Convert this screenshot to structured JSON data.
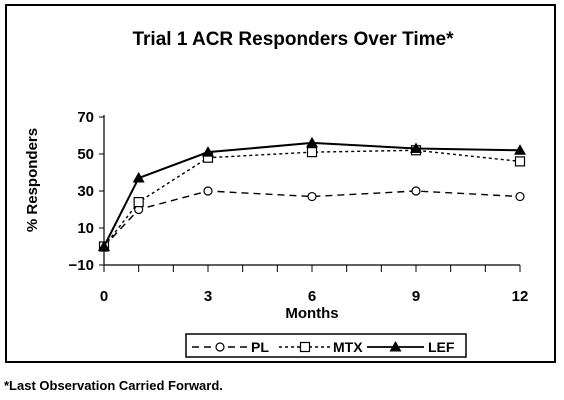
{
  "chart_data": {
    "type": "line",
    "title": "Trial 1 ACR Responders Over Time*",
    "xlabel": "Months",
    "ylabel": "% Responders",
    "xlim": [
      0,
      12
    ],
    "ylim": [
      -10,
      70
    ],
    "x_ticks": [
      0,
      3,
      6,
      9,
      12
    ],
    "y_ticks": [
      -10,
      10,
      30,
      50,
      70
    ],
    "x_tick_labels": [
      "0",
      "3",
      "6",
      "9",
      "12"
    ],
    "y_tick_labels": [
      "−10",
      "10",
      "30",
      "50",
      "70"
    ],
    "grid": false,
    "legend_position": "bottom",
    "series": [
      {
        "name": "PL",
        "line": "dashed",
        "marker": "circle",
        "x": [
          0,
          1,
          3,
          6,
          9,
          12
        ],
        "values": [
          0,
          20,
          30,
          27,
          30,
          27
        ]
      },
      {
        "name": "MTX",
        "line": "dotted",
        "marker": "square",
        "x": [
          0,
          1,
          3,
          6,
          9,
          12
        ],
        "values": [
          0,
          24,
          48,
          51,
          52,
          46
        ]
      },
      {
        "name": "LEF",
        "line": "solid",
        "marker": "triangle",
        "x": [
          0,
          1,
          3,
          6,
          9,
          12
        ],
        "values": [
          0,
          37,
          51,
          56,
          53,
          52
        ]
      }
    ]
  },
  "footnote": "*Last Observation Carried Forward."
}
